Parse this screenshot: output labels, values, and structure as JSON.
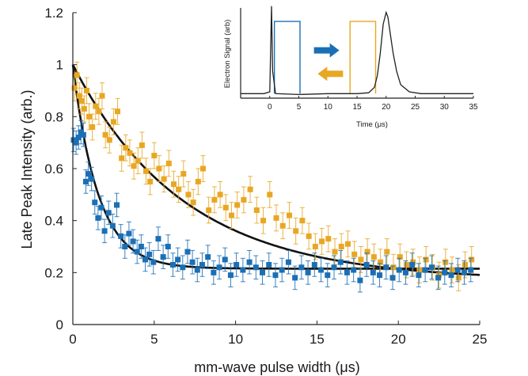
{
  "chart_data": [
    {
      "type": "scatter",
      "title": "",
      "xlabel": "mm-wave pulse width (μs)",
      "ylabel": "Late Peak Intensity (arb.)",
      "xlim": [
        0,
        25
      ],
      "ylim": [
        0,
        1.2
      ],
      "xticks": [
        "0",
        "5",
        "10",
        "15",
        "20",
        "25"
      ],
      "yticks": [
        "0",
        "0.2",
        "0.4",
        "0.6",
        "0.8",
        "1",
        "1.2"
      ],
      "grid": false,
      "series": [
        {
          "color": "#e8a723",
          "marker": "square",
          "error_bars": true,
          "x": [
            0.1,
            0.25,
            0.4,
            0.55,
            0.7,
            0.85,
            1.0,
            1.2,
            1.4,
            1.6,
            1.8,
            2.0,
            2.25,
            2.5,
            2.75,
            3.0,
            3.25,
            3.5,
            3.75,
            4.0,
            4.25,
            4.5,
            4.75,
            5.0,
            5.3,
            5.6,
            5.9,
            6.2,
            6.5,
            6.8,
            7.1,
            7.4,
            7.7,
            8.0,
            8.35,
            8.7,
            9.05,
            9.4,
            9.75,
            10.1,
            10.5,
            10.9,
            11.3,
            11.7,
            12.1,
            12.5,
            12.9,
            13.3,
            13.7,
            14.1,
            14.5,
            14.9,
            15.3,
            15.7,
            16.1,
            16.5,
            16.9,
            17.3,
            17.7,
            18.1,
            18.5,
            18.9,
            19.3,
            19.7,
            20.1,
            20.5,
            20.9,
            21.3,
            21.7,
            22.1,
            22.5,
            22.9,
            23.3,
            23.7,
            24.1,
            24.5
          ],
          "y": [
            0.91,
            0.96,
            0.88,
            0.86,
            0.83,
            0.9,
            0.8,
            0.76,
            0.84,
            0.82,
            0.88,
            0.73,
            0.71,
            0.78,
            0.82,
            0.64,
            0.68,
            0.66,
            0.61,
            0.63,
            0.69,
            0.59,
            0.55,
            0.65,
            0.6,
            0.56,
            0.62,
            0.54,
            0.52,
            0.58,
            0.5,
            0.47,
            0.55,
            0.6,
            0.44,
            0.48,
            0.5,
            0.45,
            0.42,
            0.46,
            0.48,
            0.52,
            0.44,
            0.4,
            0.5,
            0.41,
            0.38,
            0.42,
            0.36,
            0.4,
            0.34,
            0.3,
            0.32,
            0.33,
            0.28,
            0.3,
            0.31,
            0.27,
            0.25,
            0.28,
            0.26,
            0.24,
            0.28,
            0.22,
            0.26,
            0.23,
            0.24,
            0.21,
            0.25,
            0.22,
            0.19,
            0.24,
            0.21,
            0.18,
            0.23,
            0.25
          ],
          "yerr": 0.05
        },
        {
          "color": "#1b6fb5",
          "marker": "square",
          "error_bars": true,
          "x": [
            0.05,
            0.2,
            0.35,
            0.5,
            0.65,
            0.8,
            0.95,
            1.15,
            1.35,
            1.55,
            1.75,
            1.95,
            2.2,
            2.45,
            2.7,
            2.95,
            3.2,
            3.45,
            3.7,
            3.95,
            4.2,
            4.45,
            4.7,
            4.95,
            5.25,
            5.55,
            5.85,
            6.15,
            6.45,
            6.75,
            7.05,
            7.35,
            7.65,
            7.95,
            8.3,
            8.65,
            9.0,
            9.35,
            9.7,
            10.05,
            10.45,
            10.85,
            11.25,
            11.65,
            12.05,
            12.45,
            12.85,
            13.25,
            13.65,
            14.05,
            14.45,
            14.85,
            15.25,
            15.65,
            16.05,
            16.45,
            16.85,
            17.25,
            17.65,
            18.05,
            18.45,
            18.85,
            19.25,
            19.65,
            20.05,
            20.45,
            20.85,
            21.25,
            21.65,
            22.05,
            22.45,
            22.85,
            23.25,
            23.65,
            24.05,
            24.45
          ],
          "y": [
            0.71,
            0.7,
            0.72,
            0.74,
            0.73,
            0.55,
            0.58,
            0.56,
            0.47,
            0.41,
            0.45,
            0.36,
            0.43,
            0.38,
            0.46,
            0.34,
            0.3,
            0.35,
            0.32,
            0.28,
            0.3,
            0.25,
            0.27,
            0.24,
            0.33,
            0.26,
            0.3,
            0.23,
            0.25,
            0.22,
            0.28,
            0.24,
            0.21,
            0.23,
            0.26,
            0.2,
            0.22,
            0.25,
            0.19,
            0.23,
            0.21,
            0.24,
            0.22,
            0.2,
            0.23,
            0.19,
            0.21,
            0.24,
            0.18,
            0.22,
            0.2,
            0.23,
            0.21,
            0.19,
            0.22,
            0.24,
            0.2,
            0.21,
            0.17,
            0.23,
            0.2,
            0.19,
            0.22,
            0.18,
            0.21,
            0.2,
            0.23,
            0.19,
            0.21,
            0.22,
            0.18,
            0.2,
            0.19,
            0.21,
            0.2,
            0.21
          ],
          "yerr": 0.045
        }
      ],
      "fits": [
        {
          "color": "#111111",
          "model": "exponential",
          "start": 1.0,
          "offset": 0.17,
          "tau": 6.8
        },
        {
          "color": "#111111",
          "model": "exponential",
          "start": 1.0,
          "offset": 0.215,
          "tau": 1.55
        }
      ]
    },
    {
      "type": "line",
      "title": "",
      "xlabel": "Time (μs)",
      "ylabel": "Electron Signal (arb)",
      "xlim": [
        -5,
        35
      ],
      "xticks": [
        "0",
        "5",
        "10",
        "15",
        "20",
        "25",
        "30",
        "35"
      ],
      "signal": {
        "color": "#222222",
        "x": [
          -5,
          -1,
          0,
          0.15,
          0.3,
          0.5,
          1,
          5,
          10,
          15,
          17,
          18,
          18.5,
          19,
          19.5,
          20,
          20.3,
          20.7,
          21.2,
          21.8,
          22.5,
          24,
          26,
          35
        ],
        "y": [
          0.05,
          0.05,
          0.07,
          0.55,
          1.02,
          0.3,
          0.05,
          0.04,
          0.05,
          0.05,
          0.06,
          0.12,
          0.25,
          0.5,
          0.82,
          0.95,
          0.9,
          0.72,
          0.5,
          0.3,
          0.15,
          0.07,
          0.05,
          0.05
        ]
      },
      "pulses": [
        {
          "color": "#1b6fb5",
          "start": 0.8,
          "end": 5.2,
          "level": 0.85
        },
        {
          "color": "#e8a723",
          "start": 13.8,
          "end": 18.2,
          "level": 0.85
        }
      ],
      "arrows": [
        {
          "color": "#1b6fb5",
          "direction": "right"
        },
        {
          "color": "#e8a723",
          "direction": "left"
        }
      ]
    }
  ]
}
